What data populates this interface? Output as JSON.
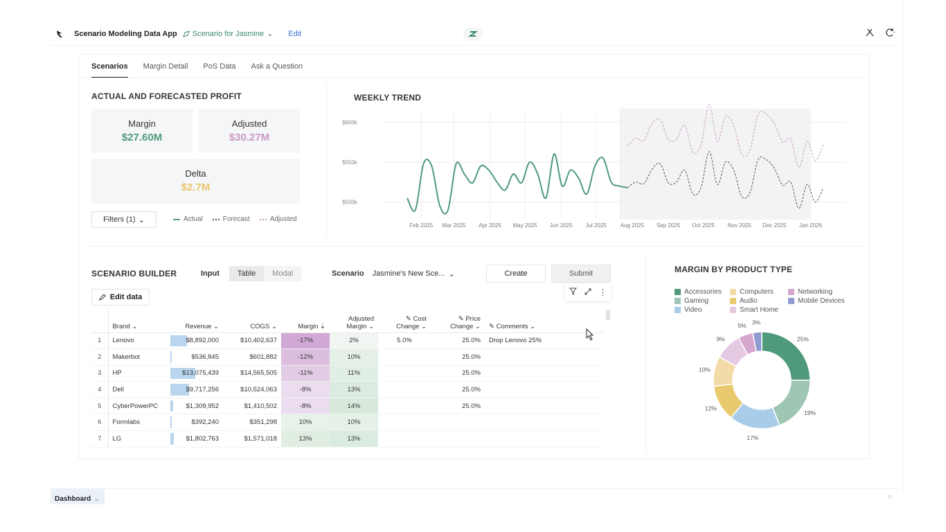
{
  "topbar": {
    "app_title": "Scenario Modeling Data App",
    "scenario_name": "Scenario for Jasmine",
    "edit_label": "Edit"
  },
  "tabs": [
    "Scenarios",
    "Margin Detail",
    "PoS Data",
    "Ask a Question"
  ],
  "profit": {
    "title": "ACTUAL AND FORECASTED PROFIT",
    "margin_label": "Margin",
    "margin_value": "$27.60M",
    "adjusted_label": "Adjusted",
    "adjusted_value": "$30.27M",
    "delta_label": "Delta",
    "delta_value": "$2.7M",
    "filters_label": "Filters (1)",
    "legend": [
      "Actual",
      "Forecast",
      "Adjusted"
    ]
  },
  "colors": {
    "actual": "#4f9a7a",
    "adjusted": "#c79ac6",
    "delta": "#e9c46a"
  },
  "weekly_trend": {
    "title": "WEEKLY TREND",
    "y_ticks": [
      "$600k",
      "$550k",
      "$500k"
    ],
    "x_ticks": [
      "Feb 2025",
      "Mar 2025",
      "Apr 2025",
      "May 2025",
      "Jun 2025",
      "Jul 2025",
      "Aug 2025",
      "Sep 2025",
      "Oct 2025",
      "Nov 2025",
      "Dec 2025",
      "Jan 2026"
    ]
  },
  "chart_data": [
    {
      "type": "line",
      "title": "WEEKLY TREND",
      "xlabel": "",
      "ylabel": "",
      "ylim": [
        485000,
        615000
      ],
      "x": [
        "2025-01-20",
        "2025-01-27",
        "2025-02-03",
        "2025-02-10",
        "2025-02-17",
        "2025-02-24",
        "2025-03-03",
        "2025-03-10",
        "2025-03-17",
        "2025-03-24",
        "2025-03-31",
        "2025-04-07",
        "2025-04-14",
        "2025-04-21",
        "2025-04-28",
        "2025-05-05",
        "2025-05-12",
        "2025-05-19",
        "2025-05-26",
        "2025-06-02",
        "2025-06-09",
        "2025-06-16",
        "2025-06-23",
        "2025-06-30",
        "2025-07-07",
        "2025-07-14",
        "2025-07-21",
        "2025-07-28",
        "2025-08-04",
        "2025-08-11",
        "2025-08-18",
        "2025-08-25",
        "2025-09-01",
        "2025-09-08",
        "2025-09-15",
        "2025-09-22",
        "2025-09-29",
        "2025-10-06",
        "2025-10-13",
        "2025-10-20",
        "2025-10-27",
        "2025-11-03",
        "2025-11-10",
        "2025-11-17",
        "2025-11-24",
        "2025-12-01",
        "2025-12-08",
        "2025-12-15",
        "2025-12-22",
        "2025-12-29",
        "2026-01-05",
        "2026-01-12"
      ],
      "series": [
        {
          "name": "Actual",
          "values": [
            505000,
            490000,
            548000,
            545000,
            495000,
            490000,
            548000,
            535000,
            524000,
            545000,
            540000,
            525000,
            515000,
            535000,
            524000,
            550000,
            535000,
            505000,
            560000,
            520000,
            540000,
            530000,
            510000,
            545000,
            555000,
            525000,
            520000,
            518000,
            null,
            null,
            null,
            null,
            null,
            null,
            null,
            null,
            null,
            null,
            null,
            null,
            null,
            null,
            null,
            null,
            null,
            null,
            null,
            null,
            null,
            null,
            null,
            null
          ]
        },
        {
          "name": "Forecast",
          "values": [
            null,
            null,
            null,
            null,
            null,
            null,
            null,
            null,
            null,
            null,
            null,
            null,
            null,
            null,
            null,
            null,
            null,
            null,
            null,
            null,
            null,
            null,
            null,
            null,
            null,
            null,
            null,
            518000,
            525000,
            523000,
            541000,
            548000,
            524000,
            525000,
            540000,
            510000,
            518000,
            563000,
            522000,
            550000,
            540000,
            507000,
            512000,
            553000,
            553000,
            542000,
            521000,
            525000,
            492000,
            522000,
            500000,
            518000
          ]
        },
        {
          "name": "Adjusted",
          "values": [
            null,
            null,
            null,
            null,
            null,
            null,
            null,
            null,
            null,
            null,
            null,
            null,
            null,
            null,
            null,
            null,
            null,
            null,
            null,
            null,
            null,
            null,
            null,
            null,
            null,
            null,
            null,
            570000,
            580000,
            577000,
            598000,
            603000,
            578000,
            579000,
            596000,
            562000,
            572000,
            622000,
            576000,
            607000,
            596000,
            560000,
            565000,
            610000,
            610000,
            598000,
            575000,
            579000,
            543000,
            576000,
            552000,
            572000
          ]
        }
      ]
    },
    {
      "type": "table",
      "title": "SCENARIO BUILDER",
      "columns": [
        "Brand",
        "Revenue",
        "COGS",
        "Margin",
        "Adjusted Margin",
        "Cost Change",
        "Price Change",
        "Comments"
      ],
      "rows": [
        [
          "Lenovo",
          8892000,
          10402637,
          "-17%",
          "2%",
          "5.0%",
          "25.0%",
          "Drop Lenovo 25%"
        ],
        [
          "Makerbot",
          536845,
          601882,
          "-12%",
          "10%",
          "",
          "25.0%",
          ""
        ],
        [
          "HP",
          13075439,
          14565505,
          "-11%",
          "11%",
          "",
          "25.0%",
          ""
        ],
        [
          "Dell",
          9717256,
          10524063,
          "-8%",
          "13%",
          "",
          "25.0%",
          ""
        ],
        [
          "CyberPowerPC",
          1309952,
          1410502,
          "-8%",
          "14%",
          "",
          "25.0%",
          ""
        ],
        [
          "Formlabs",
          392240,
          351298,
          "10%",
          "10%",
          "",
          "",
          ""
        ],
        [
          "LG",
          1802763,
          1571018,
          "13%",
          "13%",
          "",
          "",
          ""
        ]
      ]
    },
    {
      "type": "pie",
      "title": "MARGIN BY PRODUCT TYPE",
      "categories": [
        "Accessories",
        "Gaming",
        "Video",
        "Audio",
        "Computers",
        "Smart Home",
        "Networking",
        "Mobile Devices"
      ],
      "values": [
        25,
        19,
        17,
        12,
        10,
        9,
        5,
        3
      ],
      "colors": [
        "#4f9a7a",
        "#9fc6b4",
        "#a9cde9",
        "#e9c96e",
        "#f3dba8",
        "#e5c8e2",
        "#d6a8cf",
        "#8f9bd0"
      ]
    }
  ],
  "builder": {
    "title": "SCENARIO BUILDER",
    "input_label": "Input",
    "seg_options": [
      "Table",
      "Modal"
    ],
    "scenario_label": "Scenario",
    "scenario_value": "Jasmine's New Sce...",
    "create_label": "Create",
    "submit_label": "Submit",
    "edit_data_label": "Edit data",
    "headers": {
      "brand": "Brand",
      "revenue": "Revenue",
      "cogs": "COGS",
      "margin": "Margin",
      "adjusted_margin_1": "Adjusted",
      "adjusted_margin_2": "Margin",
      "cost_change_1": "Cost",
      "cost_change_2": "Change",
      "price_change_1": "Price",
      "price_change_2": "Change",
      "comments": "Comments"
    },
    "rows": [
      {
        "idx": "1",
        "brand": "Lenovo",
        "revenue": "$8,892,000",
        "rev_share": 0.68,
        "cogs": "$10,402,637",
        "margin": "-17%",
        "adj": "2%",
        "cost": "5.0%",
        "price": "25.0%",
        "comment": "Drop Lenovo 25%"
      },
      {
        "idx": "2",
        "brand": "Makerbot",
        "revenue": "$536,845",
        "rev_share": 0.04,
        "cogs": "$601,882",
        "margin": "-12%",
        "adj": "10%",
        "cost": "",
        "price": "25.0%",
        "comment": ""
      },
      {
        "idx": "3",
        "brand": "HP",
        "revenue": "$13,075,439",
        "rev_share": 1.0,
        "cogs": "$14,565,505",
        "margin": "-11%",
        "adj": "11%",
        "cost": "",
        "price": "25.0%",
        "comment": ""
      },
      {
        "idx": "4",
        "brand": "Dell",
        "revenue": "$9,717,256",
        "rev_share": 0.74,
        "cogs": "$10,524,063",
        "margin": "-8%",
        "adj": "13%",
        "cost": "",
        "price": "25.0%",
        "comment": ""
      },
      {
        "idx": "5",
        "brand": "CyberPowerPC",
        "revenue": "$1,309,952",
        "rev_share": 0.1,
        "cogs": "$1,410,502",
        "margin": "-8%",
        "adj": "14%",
        "cost": "",
        "price": "25.0%",
        "comment": ""
      },
      {
        "idx": "6",
        "brand": "Formlabs",
        "revenue": "$392,240",
        "rev_share": 0.03,
        "cogs": "$351,298",
        "margin": "10%",
        "adj": "10%",
        "cost": "",
        "price": "",
        "comment": ""
      },
      {
        "idx": "7",
        "brand": "LG",
        "revenue": "$1,802,763",
        "rev_share": 0.14,
        "cogs": "$1,571,018",
        "margin": "13%",
        "adj": "13%",
        "cost": "",
        "price": "",
        "comment": ""
      }
    ],
    "margin_colors": [
      "#d2a8d4",
      "#dcbedf",
      "#e3cce6",
      "#ecdcef",
      "#ecdcef",
      "#e8f2e9",
      "#e0eee2"
    ],
    "adj_colors": [
      "#f2f6f2",
      "#e5f0e6",
      "#e1eee3",
      "#dcebdf",
      "#d8e9db",
      "#e5f0e6",
      "#dcebdf"
    ]
  },
  "margin_by_type": {
    "title": "MARGIN BY PRODUCT TYPE",
    "legend": [
      "Accessories",
      "Computers",
      "Networking",
      "Gaming",
      "Audio",
      "Mobile Devices",
      "Video",
      "Smart Home"
    ],
    "legend_colors": [
      "#4f9a7a",
      "#f3dba8",
      "#d6a8cf",
      "#9fc6b4",
      "#e9c96e",
      "#8f9bd0",
      "#a9cde9",
      "#e5c8e2"
    ],
    "labels": [
      "25%",
      "19%",
      "17%",
      "12%",
      "10%",
      "9%",
      "5%",
      "3%"
    ]
  },
  "footer": {
    "tab_label": "Dashboard"
  }
}
